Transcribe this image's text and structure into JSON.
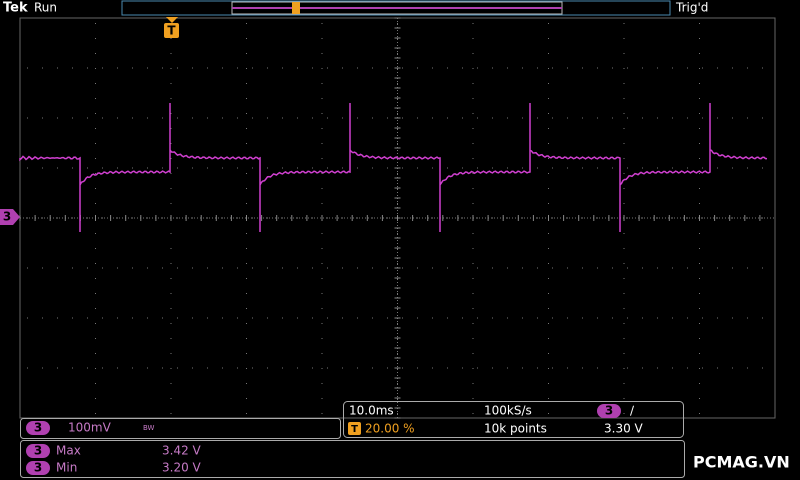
{
  "header": {
    "brand": "Tek",
    "status": "Run",
    "trigger_status": "Trig'd",
    "trigger_marker": "T"
  },
  "channel_marker": "3",
  "channel": {
    "number": "3",
    "scale": "100mV",
    "bandwidth": "BW"
  },
  "timebase": {
    "scale": "10.0ms",
    "sample_rate": "100kS/s",
    "trigger_channel": "3",
    "trigger_slope": "∕",
    "trigger_marker": "T",
    "trigger_position": "20.00 %",
    "record_length": "10k points",
    "trigger_level": "3.30 V"
  },
  "measurements": [
    {
      "channel": "3",
      "name": "Max",
      "value": "3.42 V"
    },
    {
      "channel": "3",
      "name": "Min",
      "value": "3.20 V"
    }
  ],
  "watermark": "PCMAG.VN"
}
